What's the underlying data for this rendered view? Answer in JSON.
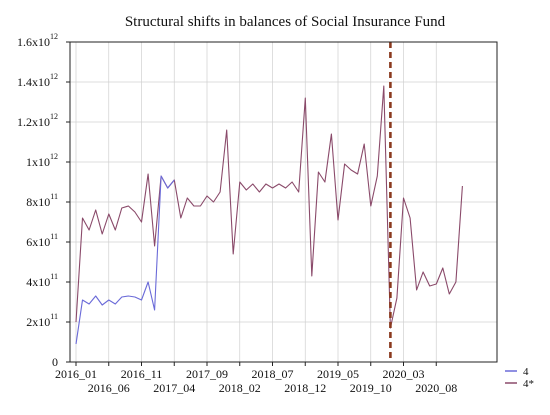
{
  "chart_data": {
    "type": "line",
    "title": "Structural shifts in balances of Social Insurance Fund",
    "xlabel": "",
    "ylabel": "",
    "ylim": [
      0,
      1600000000000
    ],
    "grid": true,
    "legend_position": "bottom-right",
    "y_ticks": [
      {
        "value": 0,
        "mantissa": "0",
        "exp": ""
      },
      {
        "value": 200000000000,
        "mantissa": "2x10",
        "exp": "11"
      },
      {
        "value": 400000000000,
        "mantissa": "4x10",
        "exp": "11"
      },
      {
        "value": 600000000000,
        "mantissa": "6x10",
        "exp": "11"
      },
      {
        "value": 800000000000,
        "mantissa": "8x10",
        "exp": "11"
      },
      {
        "value": 1000000000000,
        "mantissa": "1x10",
        "exp": "12"
      },
      {
        "value": 1200000000000,
        "mantissa": "1.2x10",
        "exp": "12"
      },
      {
        "value": 1400000000000,
        "mantissa": "1.4x10",
        "exp": "12"
      },
      {
        "value": 1600000000000,
        "mantissa": "1.6x10",
        "exp": "12"
      }
    ],
    "x_ticks_upper": [
      {
        "index": 0,
        "label": "2016_01"
      },
      {
        "index": 10,
        "label": "2016_11"
      },
      {
        "index": 20,
        "label": "2017_09"
      },
      {
        "index": 30,
        "label": "2018_07"
      },
      {
        "index": 40,
        "label": "2019_05"
      },
      {
        "index": 50,
        "label": "2020_03"
      }
    ],
    "x_ticks_lower": [
      {
        "index": 5,
        "label": "2016_06"
      },
      {
        "index": 15,
        "label": "2017_04"
      },
      {
        "index": 25,
        "label": "2018_02"
      },
      {
        "index": 35,
        "label": "2018_12"
      },
      {
        "index": 45,
        "label": "2019_10"
      },
      {
        "index": 55,
        "label": "2020_08"
      }
    ],
    "break_index": 48,
    "break_color": "#8b3a1e",
    "series": [
      {
        "name": "4",
        "color": "#6a6ad8",
        "values": [
          90000000000,
          310000000000,
          290000000000,
          330000000000,
          285000000000,
          310000000000,
          290000000000,
          325000000000,
          330000000000,
          325000000000,
          310000000000,
          400000000000,
          260000000000,
          930000000000,
          870000000000,
          910000000000
        ]
      },
      {
        "name": "4*",
        "color": "#8a4a6a",
        "values": [
          200000000000,
          720000000000,
          660000000000,
          760000000000,
          640000000000,
          740000000000,
          660000000000,
          770000000000,
          780000000000,
          750000000000,
          700000000000,
          940000000000,
          580000000000,
          930000000000,
          870000000000,
          910000000000,
          720000000000,
          820000000000,
          780000000000,
          780000000000,
          830000000000,
          800000000000,
          850000000000,
          1160000000000,
          540000000000,
          900000000000,
          860000000000,
          890000000000,
          850000000000,
          890000000000,
          870000000000,
          890000000000,
          870000000000,
          900000000000,
          850000000000,
          1320000000000,
          430000000000,
          950000000000,
          900000000000,
          1140000000000,
          710000000000,
          990000000000,
          960000000000,
          940000000000,
          1090000000000,
          780000000000,
          930000000000,
          1380000000000,
          170000000000,
          320000000000,
          820000000000,
          720000000000,
          360000000000,
          450000000000,
          380000000000,
          390000000000,
          470000000000,
          340000000000,
          400000000000,
          880000000000
        ]
      }
    ]
  }
}
